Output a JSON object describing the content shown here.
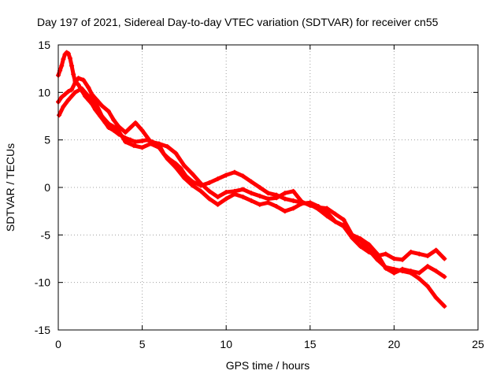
{
  "chart_data": {
    "type": "scatter",
    "title": "Day 197 of 2021, Sidereal Day-to-day VTEC variation (SDTVAR) for receiver cn55",
    "xlabel": "GPS time / hours",
    "ylabel": "SDTVAR / TECUs",
    "xlim": [
      0,
      25
    ],
    "ylim": [
      -15,
      15
    ],
    "xticks": [
      "0",
      "5",
      "10",
      "15",
      "20",
      "25"
    ],
    "yticks": [
      "-15",
      "-10",
      "-5",
      "0",
      "5",
      "10",
      "15"
    ],
    "grid": true,
    "marker": "plus",
    "color": "#ff0000",
    "series": [
      {
        "name": "SDTVAR",
        "x": [
          0.0,
          0.1,
          0.2,
          0.3,
          0.4,
          0.5,
          0.6,
          0.7,
          0.8,
          0.9,
          1.0,
          1.2,
          1.4,
          1.6,
          1.8,
          2.0,
          2.2,
          2.5,
          2.8,
          3.0,
          3.3,
          3.6,
          4.0,
          4.3,
          4.6,
          5.0,
          5.3,
          5.6,
          6.0,
          6.3,
          6.6,
          7.0,
          7.3,
          7.6,
          8.0,
          8.5,
          9.0,
          9.5,
          10.0,
          10.5,
          11.0,
          11.5,
          12.0,
          12.5,
          13.0,
          13.5,
          14.0,
          14.5,
          15.0,
          15.5,
          16.0,
          16.5,
          17.0,
          17.5,
          18.0,
          18.5,
          19.0,
          19.5,
          20.0,
          20.5,
          21.0,
          21.5,
          22.0,
          22.5,
          23.0,
          0.0,
          0.2,
          0.4,
          0.6,
          0.8,
          1.0,
          1.2,
          1.5,
          1.8,
          2.0,
          2.3,
          2.6,
          3.0,
          3.3,
          3.6,
          4.0,
          4.3,
          4.6,
          5.0,
          5.5,
          6.0,
          6.5,
          7.0,
          7.5,
          8.0,
          8.5,
          9.0,
          9.5,
          10.0,
          10.5,
          11.0,
          11.5,
          12.0,
          12.5,
          13.0,
          13.5,
          14.0,
          14.5,
          15.0,
          15.5,
          16.0,
          16.5,
          17.0,
          17.5,
          18.0,
          18.5,
          19.0,
          19.5,
          20.0,
          20.5,
          21.0,
          21.5,
          22.0,
          22.5,
          23.0,
          0.05,
          0.3,
          0.6,
          1.0,
          1.4,
          1.8,
          2.2,
          2.6,
          3.0,
          3.5,
          4.0,
          4.5,
          5.0,
          5.5,
          6.0,
          6.5,
          7.0,
          7.5,
          8.0,
          8.5,
          9.0,
          9.5,
          10.0,
          10.5,
          11.0,
          11.5,
          12.0,
          12.5,
          13.0,
          13.5,
          14.0,
          14.5,
          15.0,
          15.5,
          16.0,
          16.5,
          17.0,
          17.5,
          18.0,
          18.5,
          19.0,
          19.5,
          20.0,
          20.5,
          21.0,
          21.5,
          22.0,
          22.5,
          23.0
        ],
        "y": [
          11.8,
          12.3,
          12.8,
          13.5,
          14.0,
          14.2,
          14.1,
          13.6,
          12.8,
          11.9,
          11.2,
          10.8,
          10.2,
          9.6,
          9.2,
          8.8,
          8.2,
          7.5,
          6.8,
          6.3,
          6.0,
          5.6,
          5.2,
          5.0,
          4.8,
          4.9,
          5.0,
          4.8,
          4.5,
          3.5,
          3.0,
          2.5,
          2.0,
          1.2,
          0.6,
          0.2,
          0.5,
          0.9,
          1.3,
          1.6,
          1.2,
          0.6,
          0.0,
          -0.6,
          -0.8,
          -1.2,
          -1.4,
          -1.6,
          -1.8,
          -2.3,
          -3.0,
          -3.6,
          -4.1,
          -5.3,
          -6.2,
          -6.8,
          -7.2,
          -7.0,
          -7.5,
          -7.6,
          -6.8,
          -7.0,
          -7.2,
          -6.6,
          -7.5,
          9.0,
          9.5,
          9.8,
          10.1,
          10.3,
          11.0,
          11.5,
          11.3,
          10.5,
          9.8,
          9.2,
          8.6,
          8.0,
          7.1,
          6.4,
          5.8,
          6.3,
          6.8,
          6.0,
          4.8,
          4.6,
          4.3,
          3.6,
          2.3,
          1.4,
          0.4,
          -0.4,
          -1.0,
          -0.5,
          -0.4,
          -0.2,
          -0.6,
          -0.9,
          -1.2,
          -1.1,
          -0.6,
          -0.4,
          -1.5,
          -1.9,
          -2.1,
          -2.2,
          -2.8,
          -3.4,
          -5.0,
          -5.4,
          -6.0,
          -7.0,
          -8.5,
          -9.0,
          -8.6,
          -8.8,
          -9.0,
          -8.3,
          -8.8,
          -9.4,
          7.6,
          8.5,
          9.2,
          10.0,
          10.4,
          9.6,
          9.0,
          7.5,
          6.7,
          6.2,
          4.8,
          4.4,
          4.2,
          4.6,
          4.2,
          3.0,
          2.1,
          1.0,
          0.2,
          -0.4,
          -1.2,
          -1.8,
          -1.2,
          -0.7,
          -1.0,
          -1.4,
          -1.8,
          -1.6,
          -2.0,
          -2.5,
          -2.2,
          -1.7,
          -1.6,
          -2.0,
          -2.6,
          -3.6,
          -4.0,
          -5.2,
          -5.6,
          -6.6,
          -7.6,
          -8.4,
          -8.6,
          -8.8,
          -9.0,
          -9.6,
          -10.4,
          -11.6,
          -12.5
        ]
      }
    ]
  }
}
